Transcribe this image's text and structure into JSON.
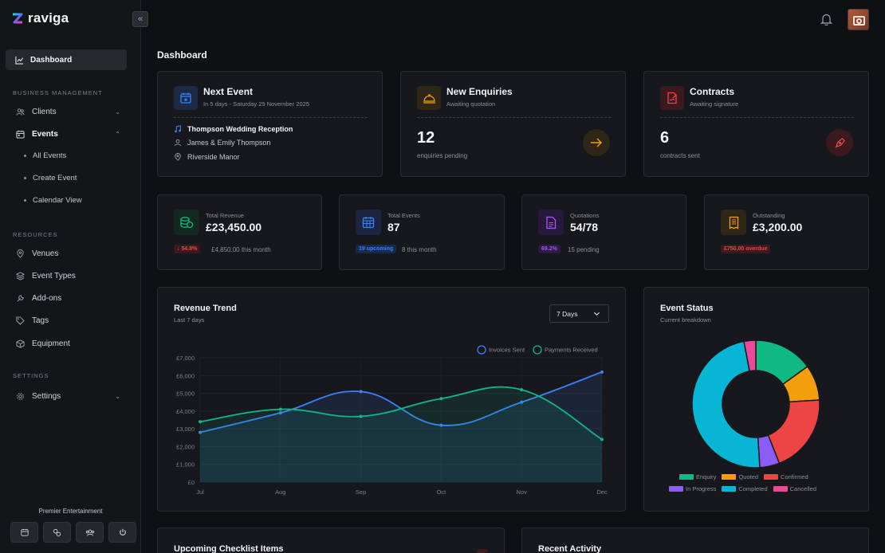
{
  "app": {
    "name": "raviga",
    "org": "Premier Entertainment"
  },
  "sidebar": {
    "dashboard": "Dashboard",
    "sections": {
      "business": "BUSINESS MANAGEMENT",
      "resources": "RESOURCES",
      "settings": "SETTINGS"
    },
    "business_items": [
      {
        "label": "Clients"
      },
      {
        "label": "Events"
      }
    ],
    "event_subitems": [
      "All Events",
      "Create Event",
      "Calendar View"
    ],
    "resource_items": [
      "Venues",
      "Event Types",
      "Add-ons",
      "Tags",
      "Equipment"
    ],
    "settings_item": "Settings"
  },
  "page": {
    "title": "Dashboard"
  },
  "next_event": {
    "title": "Next Event",
    "subtitle": "In 5 days - Saturday 29 November 2025",
    "name": "Thompson Wedding Reception",
    "client": "James & Emily Thompson",
    "venue": "Riverside Manor"
  },
  "enquiries": {
    "title": "New Enquiries",
    "subtitle": "Awaiting quotation",
    "count": "12",
    "caption": "enquiries pending"
  },
  "contracts": {
    "title": "Contracts",
    "subtitle": "Awaiting signature",
    "count": "6",
    "caption": "contracts sent"
  },
  "stats": [
    {
      "label": "Total Revenue",
      "value": "£23,450.00",
      "badge": "54.8%",
      "note": "£4,850.00 this month",
      "color": "#10b981"
    },
    {
      "label": "Total Events",
      "value": "87",
      "badge": "19 upcoming",
      "note": "8 this month",
      "color": "#3b82f6"
    },
    {
      "label": "Quotations",
      "value": "54/78",
      "badge": "69.2%",
      "note": "15 pending",
      "color": "#a855f7"
    },
    {
      "label": "Outstanding",
      "value": "£3,200.00",
      "badge": "£750.00 overdue",
      "note": "",
      "color": "#f59e0b"
    }
  ],
  "revenue_card": {
    "title": "Revenue Trend",
    "subtitle": "Last 7 days",
    "range": "7 Days"
  },
  "status_card": {
    "title": "Event Status",
    "subtitle": "Current breakdown"
  },
  "bottom": {
    "checklist_title": "Upcoming Checklist Items",
    "activity_title": "Recent Activity"
  },
  "chart_data": [
    {
      "type": "area",
      "categories": [
        "Jul",
        "Aug",
        "Sep",
        "Oct",
        "Nov",
        "Dec"
      ],
      "y_ticks": [
        "£0",
        "£1,000",
        "£2,000",
        "£3,000",
        "£4,000",
        "£5,000",
        "£6,000",
        "£7,000"
      ],
      "ylim": [
        0,
        7000
      ],
      "series": [
        {
          "name": "Invoices Sent",
          "values": [
            2800,
            3900,
            5100,
            3200,
            4500,
            6200
          ],
          "color": "#3b82f6"
        },
        {
          "name": "Payments Received",
          "values": [
            3400,
            4100,
            3700,
            4700,
            5200,
            2400
          ],
          "color": "#10b981"
        }
      ]
    },
    {
      "type": "pie",
      "donut": true,
      "series": [
        {
          "name": "Enquiry",
          "value": 15,
          "color": "#10b981"
        },
        {
          "name": "Quoted",
          "value": 9,
          "color": "#f59e0b"
        },
        {
          "name": "Confirmed",
          "value": 20,
          "color": "#ef4444"
        },
        {
          "name": "In Progress",
          "value": 5,
          "color": "#8b5cf6"
        },
        {
          "name": "Completed",
          "value": 48,
          "color": "#06b6d4"
        },
        {
          "name": "Cancelled",
          "value": 3,
          "color": "#ec4899"
        }
      ]
    }
  ]
}
